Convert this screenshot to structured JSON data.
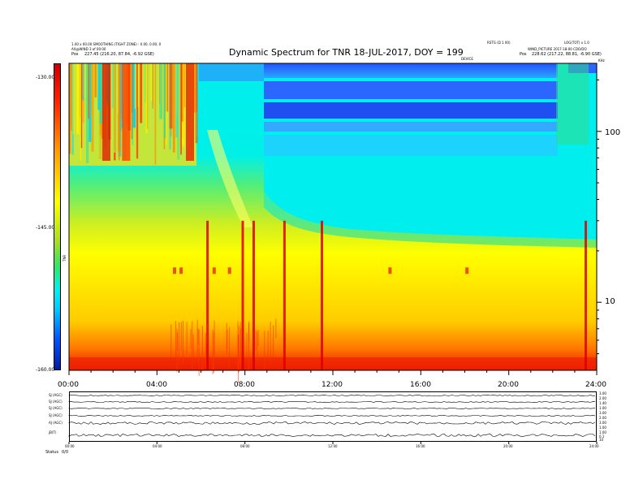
{
  "header": {
    "title": "Dynamic Spectrum for TNR 18-JUL-2017, DOY = 199",
    "top_left_line1": "1.00 x 60.00 SMOOTHING (TIGHT ZONE) : 0.00, 0.00, 0",
    "top_left_line2": "AX@WIND 3 of 00:00",
    "top_left_pos_label": "Pos",
    "top_left_pos_value": "227.45 (216.20, 87.84, -6.92 GSE)",
    "top_mid_right": "RSTG (D 1 00)",
    "top_right_line1": "LOG(TOT) x 1.0",
    "top_right_line2": "WIND_PICTURE 2017-18-00 CDO/DO",
    "top_right_pos_label": "Pos",
    "top_right_pos_value": "228.62 (217.22, 88.81, -6.90 GSE)",
    "right_small_label": "DEVICE",
    "right_corner_label": "KHz"
  },
  "chart_data": {
    "type": "heatmap",
    "title": "Dynamic Spectrum for TNR 18-JUL-2017, DOY = 199",
    "x_ticks": [
      "00:00",
      "04:00",
      "08:00",
      "12:00",
      "16:00",
      "20:00",
      "24:00"
    ],
    "xlim_hours": [
      0,
      24
    ],
    "y_right_ticks": [
      {
        "label": "100",
        "value": 100
      },
      {
        "label": "10",
        "value": 10
      }
    ],
    "y_scale": "log",
    "ylim_khz": [
      4,
      250
    ],
    "colorbar": {
      "label": "TNR",
      "ticks": [
        "-130.00",
        "-145.00",
        "-160.00"
      ],
      "range": [
        -160,
        -130
      ],
      "colors": [
        "#001a9e",
        "#0055ff",
        "#00ccff",
        "#00f0f0",
        "#33e666",
        "#aadd22",
        "#ffff00",
        "#ff9900",
        "#ff2200",
        "#cc0000"
      ]
    },
    "strong_bursts_hours": [
      6.3,
      7.9,
      8.4,
      9.8,
      11.5,
      23.5
    ],
    "weak_bursts_hours": [
      4.8,
      5.1,
      6.6,
      7.3,
      14.6,
      18.1
    ]
  },
  "lower_panel": {
    "labels": [
      "SJ (AGC)",
      "SJ (AGC)",
      "SJ (AGC)",
      "SJ (AGC)",
      "AJ (AGC)",
      "jB(T)"
    ],
    "right_ticks": [
      [
        "3.00",
        "2.00"
      ],
      [
        "1.40",
        "1.00"
      ],
      [
        "3.00",
        "2.00"
      ],
      [
        "3.00",
        "1.00"
      ],
      [
        "1.00",
        "0.1"
      ],
      [
        "10",
        "0"
      ]
    ],
    "x_ticks": [
      "00:00",
      "04:00",
      "08:00",
      "12:00",
      "16:00",
      "20:00",
      "24:00"
    ],
    "status_label": "Status",
    "status_value": "0/0"
  }
}
